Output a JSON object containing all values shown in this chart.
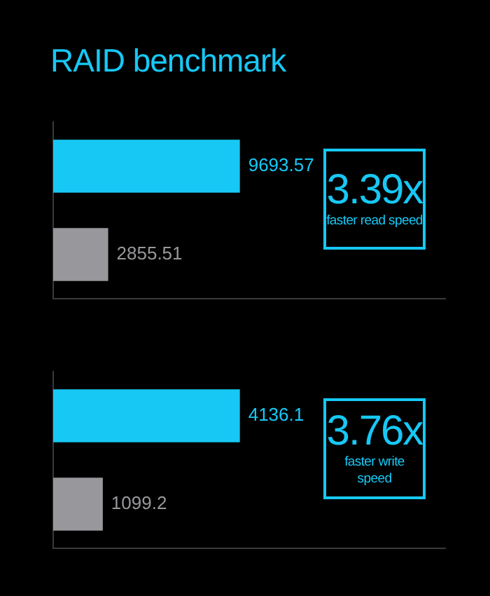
{
  "chart_data": [
    {
      "type": "bar",
      "title": "RAID benchmark",
      "orientation": "horizontal",
      "categories": [
        null,
        null
      ],
      "values": [
        9693.57,
        2855.51
      ],
      "colors": [
        "#17c8f5",
        "#98989c"
      ],
      "data_labels": true,
      "tick_labels": false,
      "grid": false,
      "legend": false,
      "annotations": [
        "3.39x",
        "faster read speed"
      ]
    },
    {
      "type": "bar",
      "orientation": "horizontal",
      "categories": [
        null,
        null
      ],
      "values": [
        4136.1,
        1099.2
      ],
      "colors": [
        "#17c8f5",
        "#98989c"
      ],
      "data_labels": true,
      "tick_labels": false,
      "grid": false,
      "legend": false,
      "annotations": [
        "3.76x",
        "faster write speed"
      ]
    }
  ]
}
